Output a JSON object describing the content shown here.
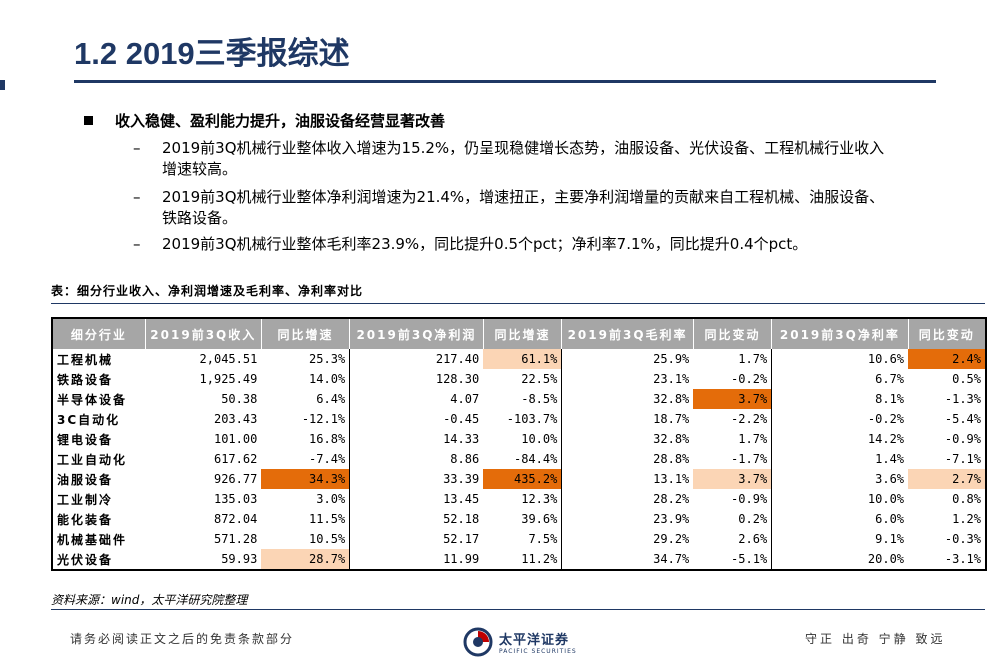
{
  "header": {
    "title": "1.2 2019三季报综述"
  },
  "bullet": {
    "heading": "收入稳健、盈利能力提升，油服设备经营显著改善",
    "dash": "–",
    "items": [
      {
        "line1": "2019前3Q机械行业整体收入增速为15.2%，仍呈现稳健增长态势，油服设备、光伏设备、工程机械行业收入",
        "line2": "增速较高。"
      },
      {
        "line1": "2019前3Q机械行业整体净利润增速为21.4%，增速扭正，主要净利润增量的贡献来自工程机械、油服设备、",
        "line2": "铁路设备。"
      },
      {
        "line1": "2019前3Q机械行业整体毛利率23.9%，同比提升0.5个pct；净利率7.1%，同比提升0.4个pct。",
        "line2": ""
      }
    ]
  },
  "table": {
    "caption": "表：细分行业收入、净利润增速及毛利率、净利率对比",
    "headers": [
      "细分行业",
      "2019前3Q收入",
      "同比增速",
      "2019前3Q净利润",
      "同比增速",
      "2019前3Q毛利率",
      "同比变动",
      "2019前3Q净利率",
      "同比变动"
    ],
    "rows": [
      [
        "工程机械",
        "2,045.51",
        "25.3%",
        "217.40",
        "61.1%",
        "25.9%",
        "1.7%",
        "10.6%",
        "2.4%"
      ],
      [
        "铁路设备",
        "1,925.49",
        "14.0%",
        "128.30",
        "22.5%",
        "23.1%",
        "-0.2%",
        "6.7%",
        "0.5%"
      ],
      [
        "半导体设备",
        "50.38",
        "6.4%",
        "4.07",
        "-8.5%",
        "32.8%",
        "3.7%",
        "8.1%",
        "-1.3%"
      ],
      [
        "3C自动化",
        "203.43",
        "-12.1%",
        "-0.45",
        "-103.7%",
        "18.7%",
        "-2.2%",
        "-0.2%",
        "-5.4%"
      ],
      [
        "锂电设备",
        "101.00",
        "16.8%",
        "14.33",
        "10.0%",
        "32.8%",
        "1.7%",
        "14.2%",
        "-0.9%"
      ],
      [
        "工业自动化",
        "617.62",
        "-7.4%",
        "8.86",
        "-84.4%",
        "28.8%",
        "-1.7%",
        "1.4%",
        "-7.1%"
      ],
      [
        "油服设备",
        "926.77",
        "34.3%",
        "33.39",
        "435.2%",
        "13.1%",
        "3.7%",
        "3.6%",
        "2.7%"
      ],
      [
        "工业制冷",
        "135.03",
        "3.0%",
        "13.45",
        "12.3%",
        "28.2%",
        "-0.9%",
        "10.0%",
        "0.8%"
      ],
      [
        "能化装备",
        "872.04",
        "11.5%",
        "52.18",
        "39.6%",
        "23.9%",
        "0.2%",
        "6.0%",
        "1.2%"
      ],
      [
        "机械基础件",
        "571.28",
        "10.5%",
        "52.17",
        "7.5%",
        "29.2%",
        "2.6%",
        "9.1%",
        "-0.3%"
      ],
      [
        "光伏设备",
        "59.93",
        "28.7%",
        "11.99",
        "11.2%",
        "34.7%",
        "-5.1%",
        "20.0%",
        "-3.1%"
      ]
    ],
    "highlights": {
      "dark_color": "#e46c0a",
      "light_color": "#fbd5b5"
    },
    "source": "资料来源：wind，太平洋研究院整理"
  },
  "footer": {
    "left": "请务必阅读正文之后的免责条款部分",
    "right": "守正 出奇 宁静 致远",
    "logo_cn": "太平洋证券",
    "logo_en": "PACIFIC SECURITIES"
  },
  "colors": {
    "brand_navy": "#1f3864",
    "header_gray": "#a6a6a6",
    "logo_red": "#c00000"
  }
}
